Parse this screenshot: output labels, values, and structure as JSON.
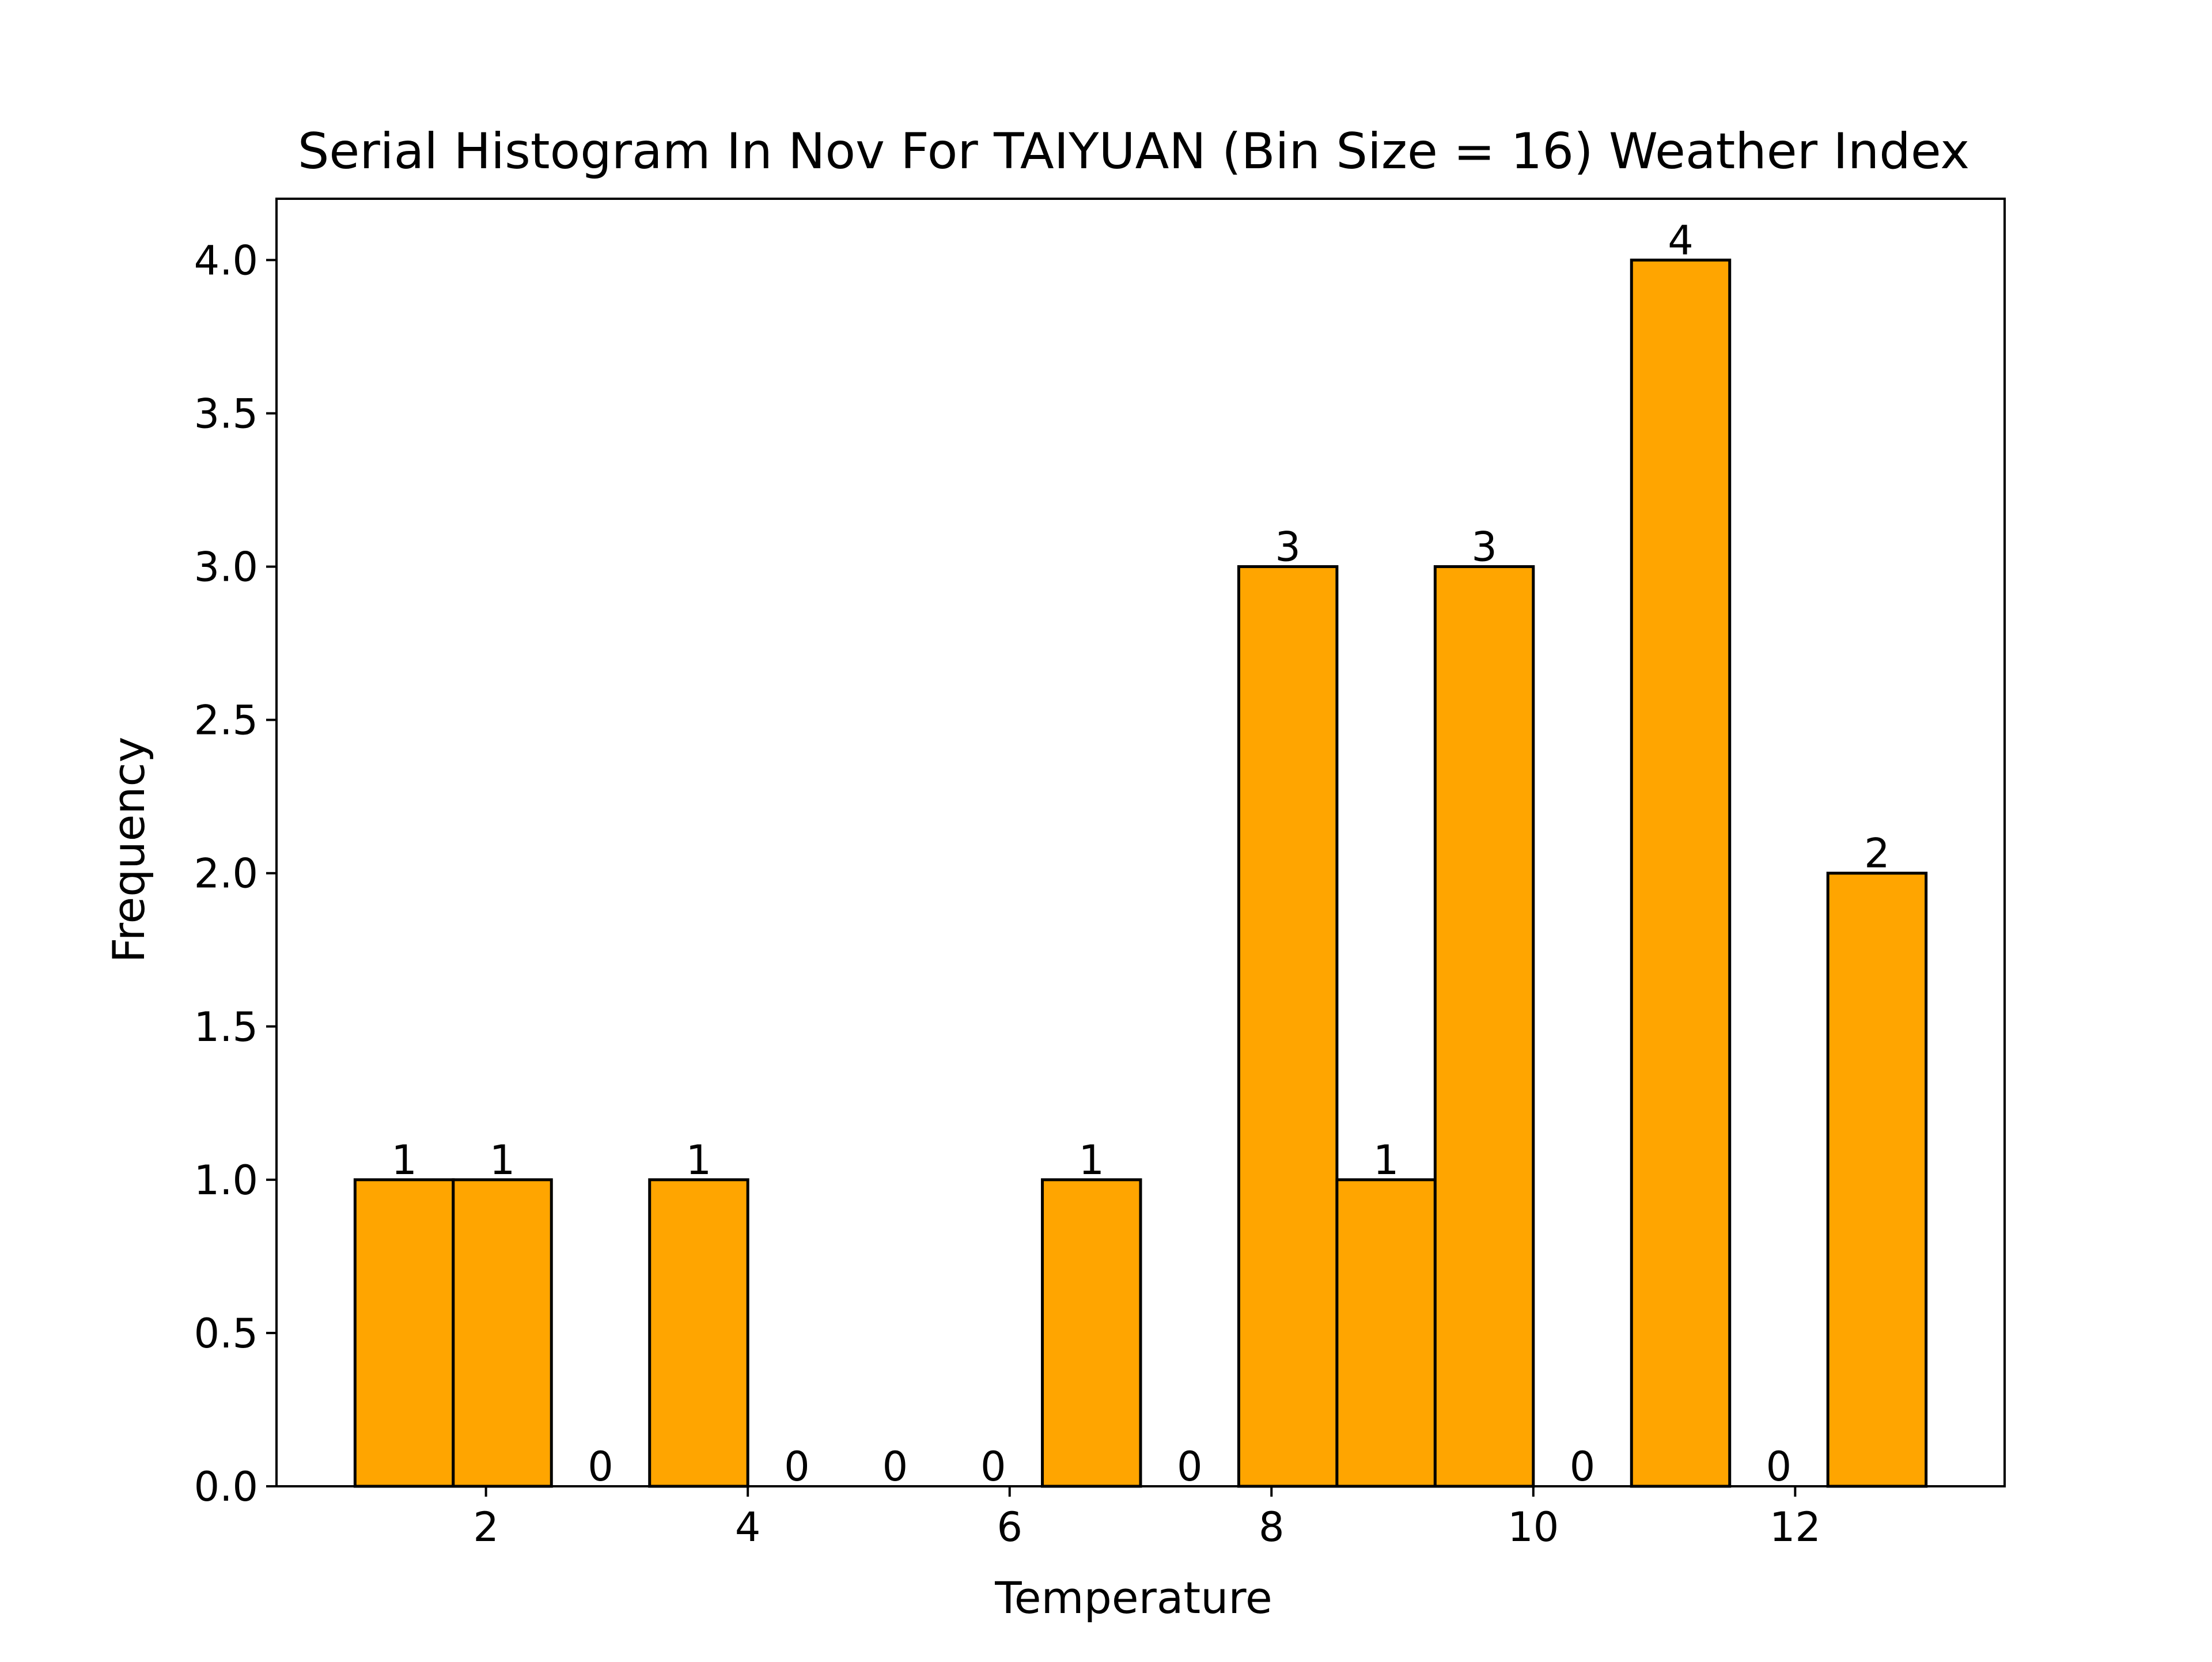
{
  "chart_data": {
    "type": "bar",
    "title": "Serial Histogram In Nov For TAIYUAN (Bin Size = 16) Weather Index",
    "xlabel": "Temperature",
    "ylabel": "Frequency",
    "xlim": [
      0.4,
      13.6
    ],
    "ylim": [
      0,
      4.2
    ],
    "x_ticks": [
      2,
      4,
      6,
      8,
      10,
      12
    ],
    "x_tick_labels": [
      "2",
      "4",
      "6",
      "8",
      "10",
      "12"
    ],
    "y_ticks": [
      0,
      0.5,
      1.0,
      1.5,
      2.0,
      2.5,
      3.0,
      3.5,
      4.0
    ],
    "y_tick_labels": [
      "0.0",
      "0.5",
      "1.0",
      "1.5",
      "2.0",
      "2.5",
      "3.0",
      "3.5",
      "4.0"
    ],
    "bin_edges": [
      1.0,
      1.75,
      2.5,
      3.25,
      4.0,
      4.75,
      5.5,
      6.25,
      7.0,
      7.75,
      8.5,
      9.25,
      10.0,
      10.75,
      11.5,
      12.25,
      13.0
    ],
    "values": [
      1,
      1,
      0,
      1,
      0,
      0,
      0,
      1,
      0,
      3,
      1,
      3,
      0,
      4,
      0,
      2
    ],
    "data_labels": [
      "1",
      "1",
      "0",
      "1",
      "0",
      "0",
      "0",
      "1",
      "0",
      "3",
      "1",
      "3",
      "0",
      "4",
      "0",
      "2"
    ],
    "colors": {
      "bar_fill": "#FFA500",
      "bar_edge": "#000000"
    },
    "grid": false
  }
}
